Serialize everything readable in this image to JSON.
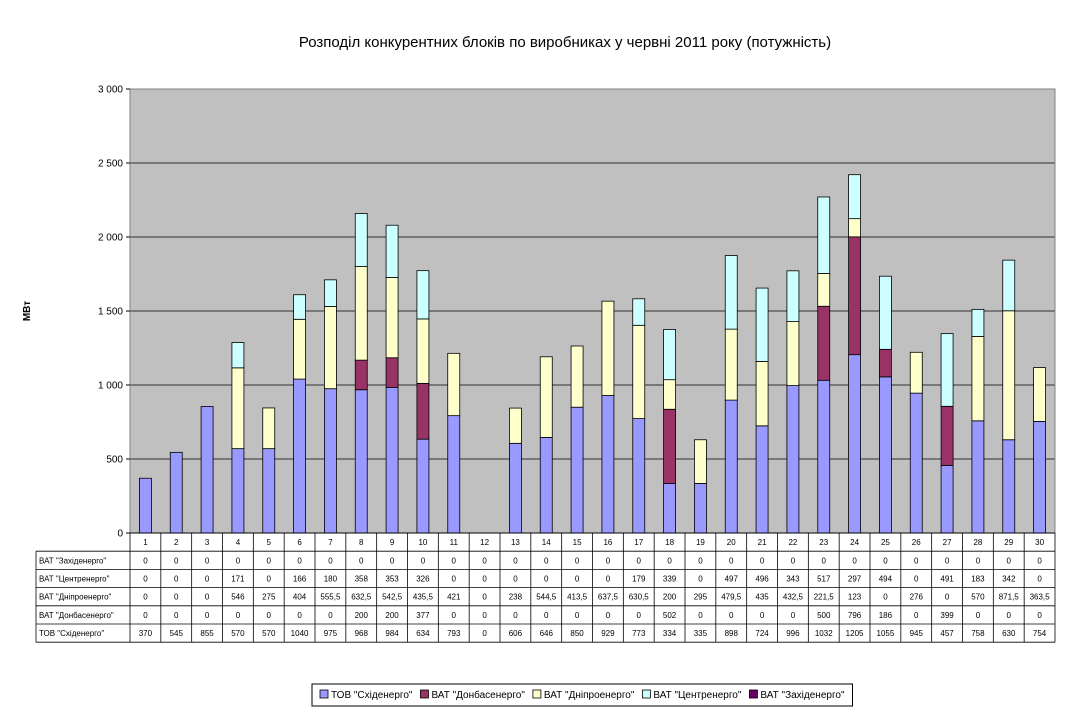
{
  "chart_data": {
    "type": "bar",
    "stacked": true,
    "title": "Розподіл конкурентних блоків по виробниках у червні 2011 року (потужність)",
    "xlabel": "",
    "ylabel": "МВт",
    "ylim": [
      0,
      3000
    ],
    "yticks": [
      0,
      500,
      1000,
      1500,
      2000,
      2500,
      3000
    ],
    "ytick_labels": [
      "0",
      "500",
      "1 000",
      "1 500",
      "2 000",
      "2 500",
      "3 000"
    ],
    "grid": true,
    "legend_position": "bottom",
    "categories": [
      "1",
      "2",
      "3",
      "4",
      "5",
      "6",
      "7",
      "8",
      "9",
      "10",
      "11",
      "12",
      "13",
      "14",
      "15",
      "16",
      "17",
      "18",
      "19",
      "20",
      "21",
      "22",
      "23",
      "24",
      "25",
      "26",
      "27",
      "28",
      "29",
      "30"
    ],
    "series": [
      {
        "name": "ТОВ \"Східенерго\"",
        "color": "#9999ff",
        "values": [
          370,
          545,
          855,
          570,
          570,
          1040,
          975,
          968,
          984,
          634,
          793,
          0,
          606,
          646,
          850,
          929,
          773,
          334,
          335,
          898,
          724,
          996,
          1032,
          1205,
          1055,
          945,
          457,
          758,
          630,
          754
        ],
        "labels": [
          "370",
          "545",
          "855",
          "570",
          "570",
          "1040",
          "975",
          "968",
          "984",
          "634",
          "793",
          "0",
          "606",
          "646",
          "850",
          "929",
          "773",
          "334",
          "335",
          "898",
          "724",
          "996",
          "1032",
          "1205",
          "1055",
          "945",
          "457",
          "758",
          "630",
          "754"
        ]
      },
      {
        "name": "ВАТ \"Донбасенерго\"",
        "color": "#993366",
        "values": [
          0,
          0,
          0,
          0,
          0,
          0,
          0,
          200,
          200,
          377,
          0,
          0,
          0,
          0,
          0,
          0,
          0,
          502,
          0,
          0,
          0,
          0,
          500,
          796,
          186,
          0,
          399,
          0,
          0,
          0
        ],
        "labels": [
          "0",
          "0",
          "0",
          "0",
          "0",
          "0",
          "0",
          "200",
          "200",
          "377",
          "0",
          "0",
          "0",
          "0",
          "0",
          "0",
          "0",
          "502",
          "0",
          "0",
          "0",
          "0",
          "500",
          "796",
          "186",
          "0",
          "399",
          "0",
          "0",
          "0"
        ]
      },
      {
        "name": "ВАТ \"Дніпроенерго\"",
        "color": "#ffffcc",
        "values": [
          0,
          0,
          0,
          546,
          275,
          404,
          555.5,
          632.5,
          542.5,
          435.5,
          421,
          0,
          238,
          544.5,
          413.5,
          637.5,
          630.5,
          200,
          295,
          479.5,
          435,
          432.5,
          221.5,
          123,
          0,
          276,
          0,
          570,
          871.5,
          363.5
        ],
        "labels": [
          "0",
          "0",
          "0",
          "546",
          "275",
          "404",
          "555,5",
          "632,5",
          "542,5",
          "435,5",
          "421",
          "0",
          "238",
          "544,5",
          "413,5",
          "637,5",
          "630,5",
          "200",
          "295",
          "479,5",
          "435",
          "432,5",
          "221,5",
          "123",
          "0",
          "276",
          "0",
          "570",
          "871,5",
          "363,5"
        ]
      },
      {
        "name": "ВАТ \"Центренерго\"",
        "color": "#ccffff",
        "values": [
          0,
          0,
          0,
          171,
          0,
          166,
          180,
          358,
          353,
          326,
          0,
          0,
          0,
          0,
          0,
          0,
          179,
          339,
          0,
          497,
          496,
          343,
          517,
          297,
          494,
          0,
          491,
          183,
          342,
          0
        ],
        "labels": [
          "0",
          "0",
          "0",
          "171",
          "0",
          "166",
          "180",
          "358",
          "353",
          "326",
          "0",
          "0",
          "0",
          "0",
          "0",
          "0",
          "179",
          "339",
          "0",
          "497",
          "496",
          "343",
          "517",
          "297",
          "494",
          "0",
          "491",
          "183",
          "342",
          "0"
        ]
      },
      {
        "name": "ВАТ \"Західенерго\"",
        "color": "#660066",
        "values": [
          0,
          0,
          0,
          0,
          0,
          0,
          0,
          0,
          0,
          0,
          0,
          0,
          0,
          0,
          0,
          0,
          0,
          0,
          0,
          0,
          0,
          0,
          0,
          0,
          0,
          0,
          0,
          0,
          0,
          0
        ],
        "labels": [
          "0",
          "0",
          "0",
          "0",
          "0",
          "0",
          "0",
          "0",
          "0",
          "0",
          "0",
          "0",
          "0",
          "0",
          "0",
          "0",
          "0",
          "0",
          "0",
          "0",
          "0",
          "0",
          "0",
          "0",
          "0",
          "0",
          "0",
          "0",
          "0",
          "0"
        ]
      }
    ],
    "table_row_order": [
      4,
      3,
      2,
      1,
      0
    ]
  }
}
